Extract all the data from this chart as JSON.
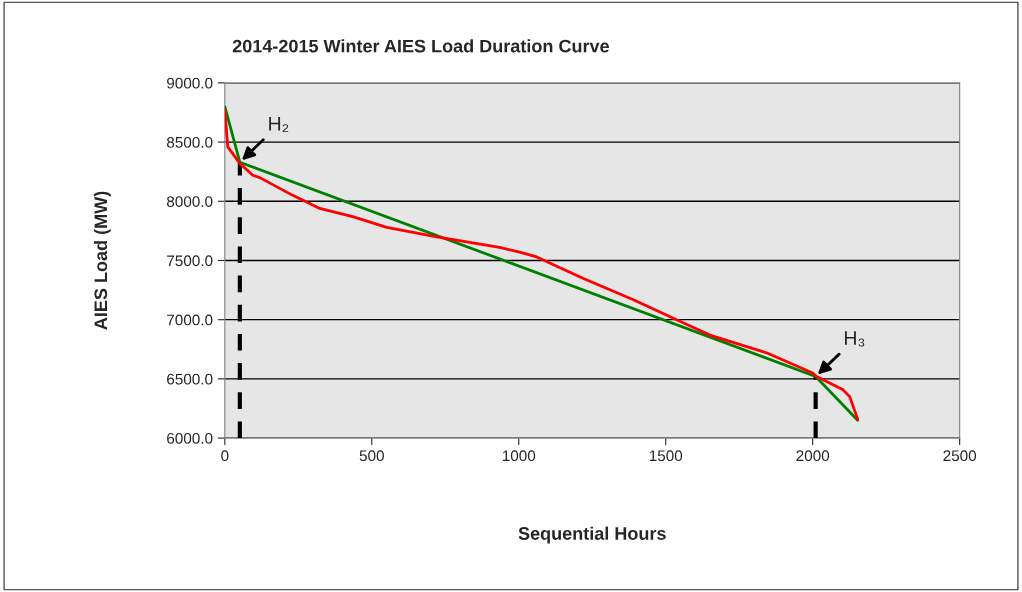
{
  "chart_data": {
    "type": "line",
    "title": "2014-2015 Winter AIES Load Duration Curve",
    "xlabel": "Sequential Hours",
    "ylabel": "AIES Load (MW)",
    "series": [
      {
        "color": "#ff0000",
        "x": [
          0,
          10,
          51,
          95,
          119,
          231,
          323,
          435,
          551,
          721,
          935,
          1003,
          1061,
          1218,
          1388,
          1537,
          1650,
          1843,
          2000,
          2013,
          2102,
          2126,
          2153
        ],
        "values": [
          8770,
          8460,
          8320,
          8220,
          8200,
          8050,
          7940,
          7870,
          7780,
          7700,
          7610,
          7570,
          7530,
          7350,
          7170,
          7000,
          6870,
          6720,
          6550,
          6520,
          6410,
          6350,
          6160
        ]
      },
      {
        "color": "#008000",
        "x": [
          0,
          51,
          2010,
          2153
        ],
        "values": [
          8800,
          8330,
          6520,
          6150
        ]
      },
      {
        "color": "#000000",
        "line_style": "dashed",
        "x": [
          51,
          51
        ],
        "values": [
          6000,
          8330
        ]
      },
      {
        "color": "#000000",
        "line_style": "dashed",
        "x": [
          2010,
          2010
        ],
        "values": [
          6000,
          6520
        ]
      }
    ],
    "annotations": [
      {
        "text": "H₂",
        "x": 51,
        "y": 8330
      },
      {
        "text": "H₃",
        "x": 2010,
        "y": 6520
      }
    ],
    "xlim": [
      0,
      2500
    ],
    "xticks": [
      0,
      500,
      1000,
      1500,
      2000,
      2500
    ],
    "ylim": [
      6000,
      9000
    ],
    "yticks": [
      {
        "value": 6000,
        "label": "6000.0"
      },
      {
        "value": 6500,
        "label": "6500.0"
      },
      {
        "value": 7000,
        "label": "7000.0"
      },
      {
        "value": 7500,
        "label": "7500.0"
      },
      {
        "value": 8000,
        "label": "8000.0"
      },
      {
        "value": 8500,
        "label": "8500.0"
      },
      {
        "value": 9000,
        "label": "9000.0"
      }
    ],
    "grid": "y",
    "legend": false
  }
}
